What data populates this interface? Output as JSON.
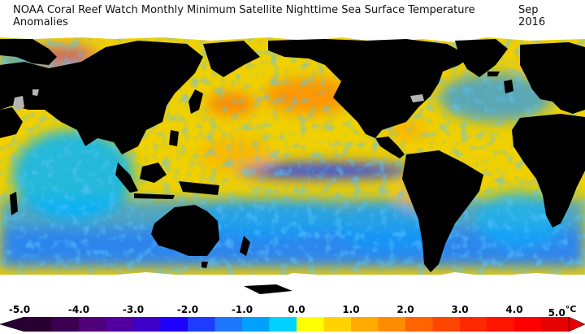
{
  "title": {
    "main": "NOAA Coral Reef Watch Monthly Minimum Satellite Nighttime Sea Surface Temperature Anomalies",
    "date": "Sep 2016"
  },
  "colorbar": {
    "tick_labels": [
      "-5.0",
      "-4.0",
      "-3.0",
      "-2.0",
      "-1.0",
      "0.0",
      "1.0",
      "2.0",
      "3.0",
      "4.0",
      "5.0"
    ],
    "unit": "°C",
    "colors": [
      "#280032",
      "#3c0050",
      "#500078",
      "#5000a0",
      "#3c00c8",
      "#1e00ff",
      "#1e3cff",
      "#1e78ff",
      "#00a0ff",
      "#00d2ff",
      "#ffff00",
      "#ffd200",
      "#ffaa00",
      "#ff8c00",
      "#ff6400",
      "#ff4600",
      "#ff2800",
      "#ff1400",
      "#ff0000",
      "#e60000"
    ]
  },
  "map": {
    "land_color": "#000000",
    "sea_ice_color": "#ffffff",
    "lakes_color": "#b4b4b4",
    "background_ocean": "#f0d000"
  }
}
